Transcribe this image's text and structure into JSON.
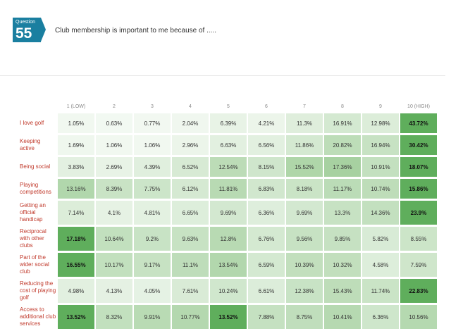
{
  "header": {
    "badge_label": "Question",
    "badge_number": "55",
    "title": "Club membership is important to me because of ....."
  },
  "table": {
    "columns": [
      "1 (LOW)",
      "2",
      "3",
      "4",
      "5",
      "6",
      "7",
      "8",
      "9",
      "10 (HIGH)"
    ],
    "rows": [
      {
        "label": "I love golf",
        "cells": [
          "1.05%",
          "0.63%",
          "0.77%",
          "2.04%",
          "6.39%",
          "4.21%",
          "11.3%",
          "16.91%",
          "12.98%",
          "43.72%"
        ]
      },
      {
        "label": "Keeping active",
        "cells": [
          "1.69%",
          "1.06%",
          "1.06%",
          "2.96%",
          "6.63%",
          "6.56%",
          "11.86%",
          "20.82%",
          "16.94%",
          "30.42%"
        ]
      },
      {
        "label": "Being social",
        "cells": [
          "3.83%",
          "2.69%",
          "4.39%",
          "6.52%",
          "12.54%",
          "8.15%",
          "15.52%",
          "17.36%",
          "10.91%",
          "18.07%"
        ]
      },
      {
        "label": "Playing competitions",
        "cells": [
          "13.16%",
          "8.39%",
          "7.75%",
          "6.12%",
          "11.81%",
          "6.83%",
          "8.18%",
          "11.17%",
          "10.74%",
          "15.86%"
        ]
      },
      {
        "label": "Getting an official handicap",
        "cells": [
          "7.14%",
          "4.1%",
          "4.81%",
          "6.65%",
          "9.69%",
          "6.36%",
          "9.69%",
          "13.3%",
          "14.36%",
          "23.9%"
        ]
      },
      {
        "label": "Reciprocal with other clubs",
        "cells": [
          "17.18%",
          "10.64%",
          "9.2%",
          "9.63%",
          "12.8%",
          "6.76%",
          "9.56%",
          "9.85%",
          "5.82%",
          "8.55%"
        ]
      },
      {
        "label": "Part of the wider social club",
        "cells": [
          "16.55%",
          "10.17%",
          "9.17%",
          "11.1%",
          "13.54%",
          "6.59%",
          "10.39%",
          "10.32%",
          "4.58%",
          "7.59%"
        ]
      },
      {
        "label": "Reducing the cost of playing golf",
        "cells": [
          "4.98%",
          "4.13%",
          "4.05%",
          "7.61%",
          "10.24%",
          "6.61%",
          "12.38%",
          "15.43%",
          "11.74%",
          "22.83%"
        ]
      },
      {
        "label": "Access to additional club services",
        "cells": [
          "13.52%",
          "8.32%",
          "9.91%",
          "10.77%",
          "13.52%",
          "7.88%",
          "8.75%",
          "10.41%",
          "6.36%",
          "10.56%"
        ]
      }
    ]
  }
}
